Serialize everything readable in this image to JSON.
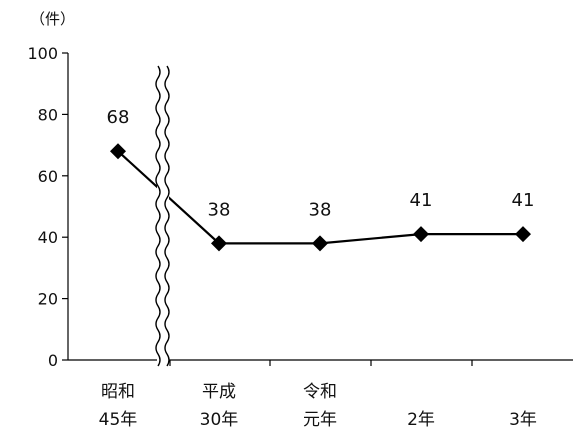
{
  "chart_data": {
    "type": "line",
    "unit_label": "（件）",
    "categories": [
      [
        "昭和",
        "45年"
      ],
      [
        "平成",
        "30年"
      ],
      [
        "令和",
        "元年"
      ],
      [
        "",
        "2年"
      ],
      [
        "",
        "3年"
      ]
    ],
    "values": [
      68,
      38,
      38,
      41,
      41
    ],
    "ylim": [
      0,
      100
    ],
    "yticks": [
      "0",
      "20",
      "40",
      "60",
      "80",
      "100"
    ],
    "axis_break": "between category 1 and 2",
    "marker": "diamond",
    "line_color": "#000000",
    "grid": false
  }
}
